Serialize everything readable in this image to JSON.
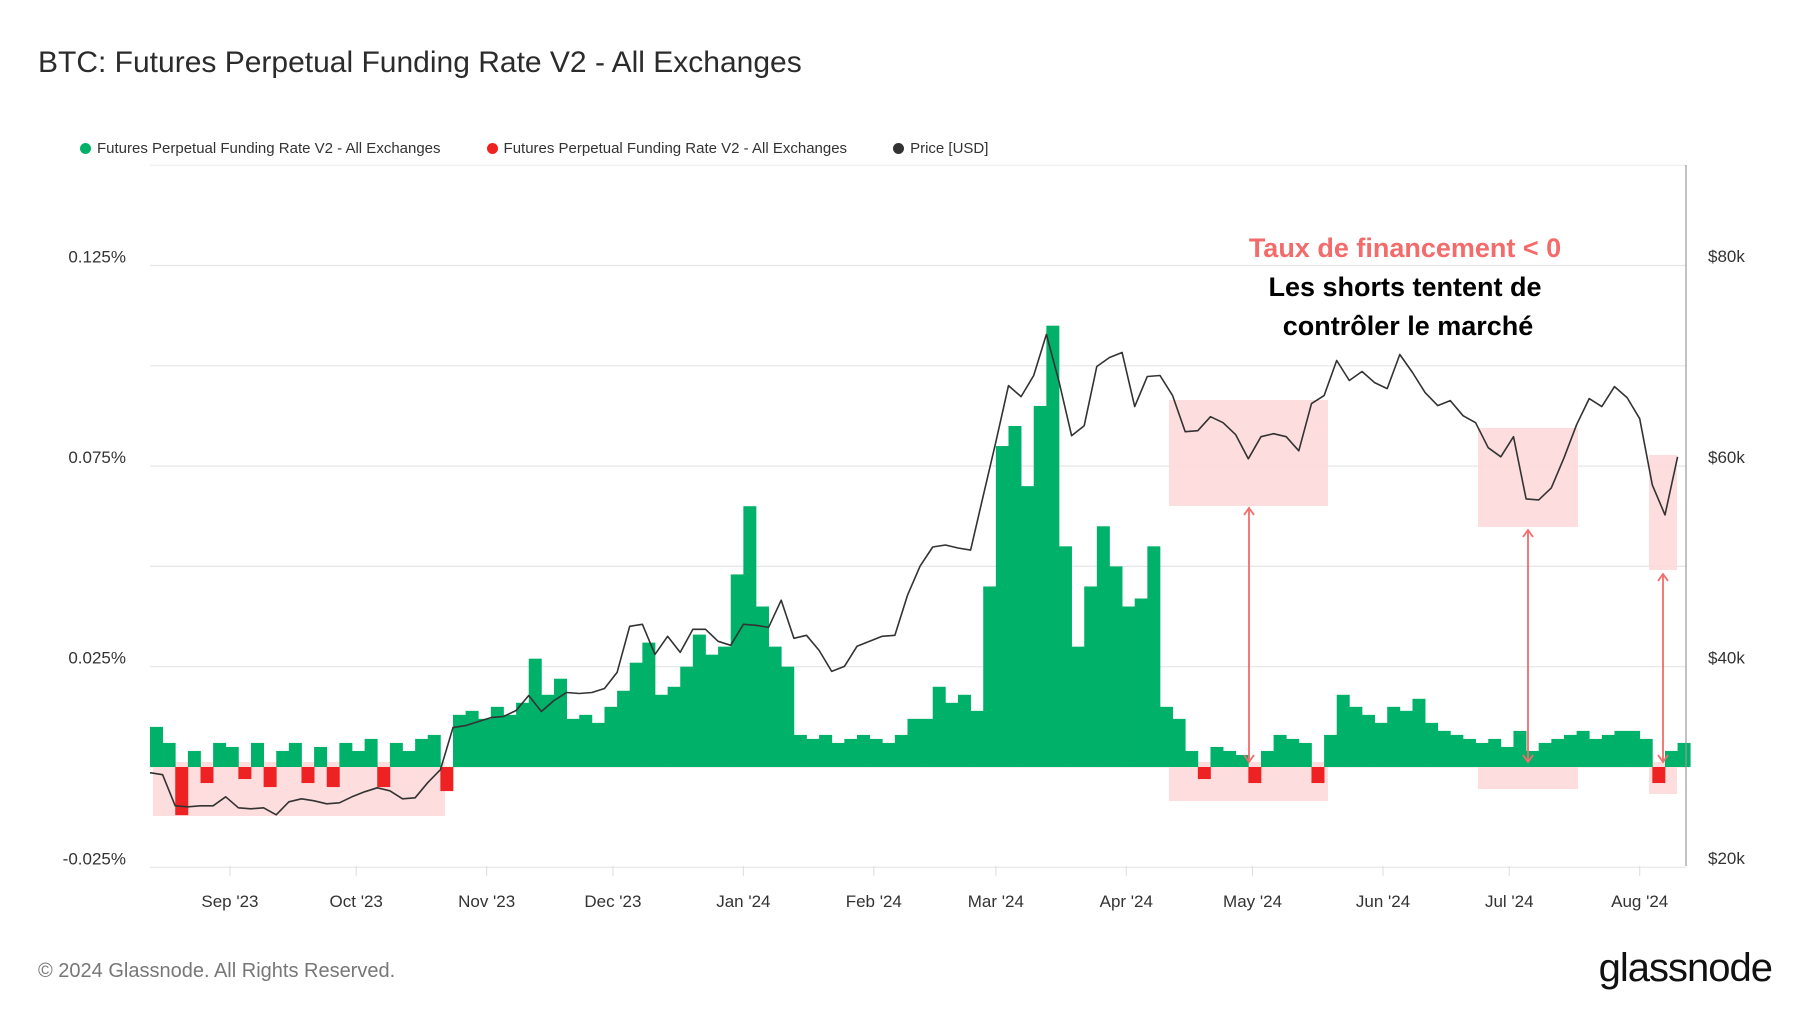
{
  "title": "BTC: Futures Perpetual Funding Rate V2 - All Exchanges",
  "legend": [
    {
      "label": "Futures Perpetual Funding Rate V2 - All Exchanges",
      "color": "#00b16a"
    },
    {
      "label": "Futures Perpetual Funding Rate V2 - All Exchanges",
      "color": "#ee2222"
    },
    {
      "label": "Price [USD]",
      "color": "#333333"
    }
  ],
  "annotation": {
    "headline": "Taux de financement < 0",
    "line1": "Les shorts tentent de",
    "line2": "contrôler le marché",
    "headline_color": "#f36b6b",
    "highlight_color": "#fdd9d9"
  },
  "footer": "© 2024 Glassnode. All Rights Reserved.",
  "logo": "glassnode",
  "chart_data": {
    "type": "bar",
    "title": "BTC: Futures Perpetual Funding Rate V2 - All Exchanges",
    "xlim": [
      "2023-08-13",
      "2024-08-12"
    ],
    "x_ticks": [
      {
        "date": "2023-09-01",
        "label": "Sep '23"
      },
      {
        "date": "2023-10-01",
        "label": "Oct '23"
      },
      {
        "date": "2023-11-01",
        "label": "Nov '23"
      },
      {
        "date": "2023-12-01",
        "label": "Dec '23"
      },
      {
        "date": "2024-01-01",
        "label": "Jan '24"
      },
      {
        "date": "2024-02-01",
        "label": "Feb '24"
      },
      {
        "date": "2024-03-01",
        "label": "Mar '24"
      },
      {
        "date": "2024-04-01",
        "label": "Apr '24"
      },
      {
        "date": "2024-05-01",
        "label": "May '24"
      },
      {
        "date": "2024-06-01",
        "label": "Jun '24"
      },
      {
        "date": "2024-07-01",
        "label": "Jul '24"
      },
      {
        "date": "2024-08-01",
        "label": "Aug '24"
      }
    ],
    "y_left": {
      "ylim": [
        -0.025,
        0.15
      ],
      "unit": "%",
      "ticks": [
        {
          "value": 0.125,
          "label": "0.125%"
        },
        {
          "value": 0.075,
          "label": "0.075%"
        },
        {
          "value": 0.025,
          "label": "0.025%"
        },
        {
          "value": -0.025,
          "label": "-0.025%"
        }
      ]
    },
    "y_right": {
      "ylim": [
        20000,
        90000
      ],
      "scale": "linear",
      "ticks": [
        {
          "value": 80000,
          "label": "$80k"
        },
        {
          "value": 60000,
          "label": "$60k"
        },
        {
          "value": 40000,
          "label": "$40k"
        },
        {
          "value": 20000,
          "label": "$20k"
        }
      ]
    },
    "grid": true,
    "legend_position": "top-left",
    "positive_color": "#00b16a",
    "negative_color": "#ee2222",
    "price_color": "#333333",
    "x": [
      "2023-08-13",
      "2023-08-16",
      "2023-08-19",
      "2023-08-22",
      "2023-08-25",
      "2023-08-28",
      "2023-08-31",
      "2023-09-03",
      "2023-09-06",
      "2023-09-09",
      "2023-09-12",
      "2023-09-15",
      "2023-09-18",
      "2023-09-21",
      "2023-09-24",
      "2023-09-27",
      "2023-09-30",
      "2023-10-03",
      "2023-10-06",
      "2023-10-09",
      "2023-10-12",
      "2023-10-15",
      "2023-10-18",
      "2023-10-21",
      "2023-10-24",
      "2023-10-27",
      "2023-10-30",
      "2023-11-02",
      "2023-11-05",
      "2023-11-08",
      "2023-11-11",
      "2023-11-14",
      "2023-11-17",
      "2023-11-20",
      "2023-11-23",
      "2023-11-26",
      "2023-11-29",
      "2023-12-02",
      "2023-12-05",
      "2023-12-08",
      "2023-12-11",
      "2023-12-14",
      "2023-12-17",
      "2023-12-20",
      "2023-12-23",
      "2023-12-26",
      "2023-12-29",
      "2024-01-01",
      "2024-01-04",
      "2024-01-07",
      "2024-01-10",
      "2024-01-13",
      "2024-01-16",
      "2024-01-19",
      "2024-01-22",
      "2024-01-25",
      "2024-01-28",
      "2024-01-31",
      "2024-02-03",
      "2024-02-06",
      "2024-02-09",
      "2024-02-12",
      "2024-02-15",
      "2024-02-18",
      "2024-02-21",
      "2024-02-24",
      "2024-02-27",
      "2024-03-01",
      "2024-03-04",
      "2024-03-07",
      "2024-03-10",
      "2024-03-13",
      "2024-03-16",
      "2024-03-19",
      "2024-03-22",
      "2024-03-25",
      "2024-03-28",
      "2024-03-31",
      "2024-04-03",
      "2024-04-06",
      "2024-04-09",
      "2024-04-12",
      "2024-04-15",
      "2024-04-18",
      "2024-04-21",
      "2024-04-24",
      "2024-04-27",
      "2024-04-30",
      "2024-05-03",
      "2024-05-06",
      "2024-05-09",
      "2024-05-12",
      "2024-05-15",
      "2024-05-18",
      "2024-05-21",
      "2024-05-24",
      "2024-05-27",
      "2024-05-30",
      "2024-06-02",
      "2024-06-05",
      "2024-06-08",
      "2024-06-11",
      "2024-06-14",
      "2024-06-17",
      "2024-06-20",
      "2024-06-23",
      "2024-06-26",
      "2024-06-29",
      "2024-07-02",
      "2024-07-05",
      "2024-07-08",
      "2024-07-11",
      "2024-07-14",
      "2024-07-17",
      "2024-07-20",
      "2024-07-23",
      "2024-07-26",
      "2024-07-29",
      "2024-08-01",
      "2024-08-04",
      "2024-08-07",
      "2024-08-10"
    ],
    "series": [
      {
        "name": "Futures Perpetual Funding Rate V2 - All Exchanges",
        "axis": "left",
        "values": [
          0.01,
          0.006,
          -0.012,
          0.004,
          -0.004,
          0.006,
          0.005,
          -0.003,
          0.006,
          -0.005,
          0.004,
          0.006,
          -0.004,
          0.005,
          -0.005,
          0.006,
          0.004,
          0.007,
          -0.005,
          0.006,
          0.004,
          0.007,
          0.008,
          -0.006,
          0.013,
          0.014,
          0.012,
          0.015,
          0.013,
          0.016,
          0.027,
          0.018,
          0.022,
          0.012,
          0.013,
          0.011,
          0.015,
          0.019,
          0.026,
          0.031,
          0.018,
          0.02,
          0.025,
          0.033,
          0.028,
          0.03,
          0.048,
          0.065,
          0.04,
          0.03,
          0.025,
          0.008,
          0.007,
          0.008,
          0.006,
          0.007,
          0.008,
          0.007,
          0.006,
          0.008,
          0.012,
          0.012,
          0.02,
          0.016,
          0.018,
          0.014,
          0.045,
          0.08,
          0.085,
          0.07,
          0.09,
          0.11,
          0.055,
          0.03,
          0.045,
          0.06,
          0.05,
          0.04,
          0.042,
          0.055,
          0.015,
          0.012,
          0.004,
          -0.003,
          0.005,
          0.004,
          0.003,
          -0.004,
          0.004,
          0.008,
          0.007,
          0.006,
          -0.004,
          0.008,
          0.018,
          0.015,
          0.013,
          0.011,
          0.015,
          0.014,
          0.017,
          0.011,
          0.009,
          0.008,
          0.007,
          0.006,
          0.007,
          0.005,
          0.009,
          0.004,
          0.006,
          0.007,
          0.008,
          0.009,
          0.007,
          0.008,
          0.009,
          0.009,
          0.007,
          -0.004,
          0.004,
          0.006
        ]
      },
      {
        "name": "Price [USD]",
        "axis": "right",
        "values": [
          29400,
          29200,
          26100,
          26000,
          26100,
          26100,
          27000,
          25900,
          25800,
          25900,
          25200,
          26500,
          26800,
          26600,
          26300,
          26400,
          27000,
          27500,
          27900,
          27600,
          26800,
          26900,
          28400,
          29700,
          33900,
          34100,
          34500,
          34900,
          35000,
          35600,
          37100,
          35500,
          36600,
          37400,
          37300,
          37400,
          37800,
          39400,
          44000,
          44200,
          41200,
          43000,
          41400,
          43700,
          43700,
          42500,
          42100,
          44200,
          44100,
          43900,
          46600,
          42800,
          43100,
          41600,
          39500,
          40000,
          42000,
          42500,
          43000,
          43100,
          47100,
          50000,
          51900,
          52100,
          51800,
          51600,
          57000,
          62400,
          68000,
          66900,
          69000,
          73100,
          68400,
          63000,
          64000,
          69900,
          70800,
          71300,
          65900,
          68900,
          69000,
          67000,
          63400,
          63500,
          64900,
          64300,
          63100,
          60700,
          62900,
          63200,
          62900,
          61500,
          66200,
          67000,
          70500,
          68500,
          69400,
          68300,
          67700,
          71100,
          69300,
          67300,
          66000,
          66500,
          65000,
          64300,
          61800,
          60900,
          62900,
          56700,
          56600,
          57800,
          60800,
          64100,
          66700,
          65900,
          67900,
          66800,
          64700,
          58100,
          55100,
          60900
        ]
      }
    ]
  }
}
